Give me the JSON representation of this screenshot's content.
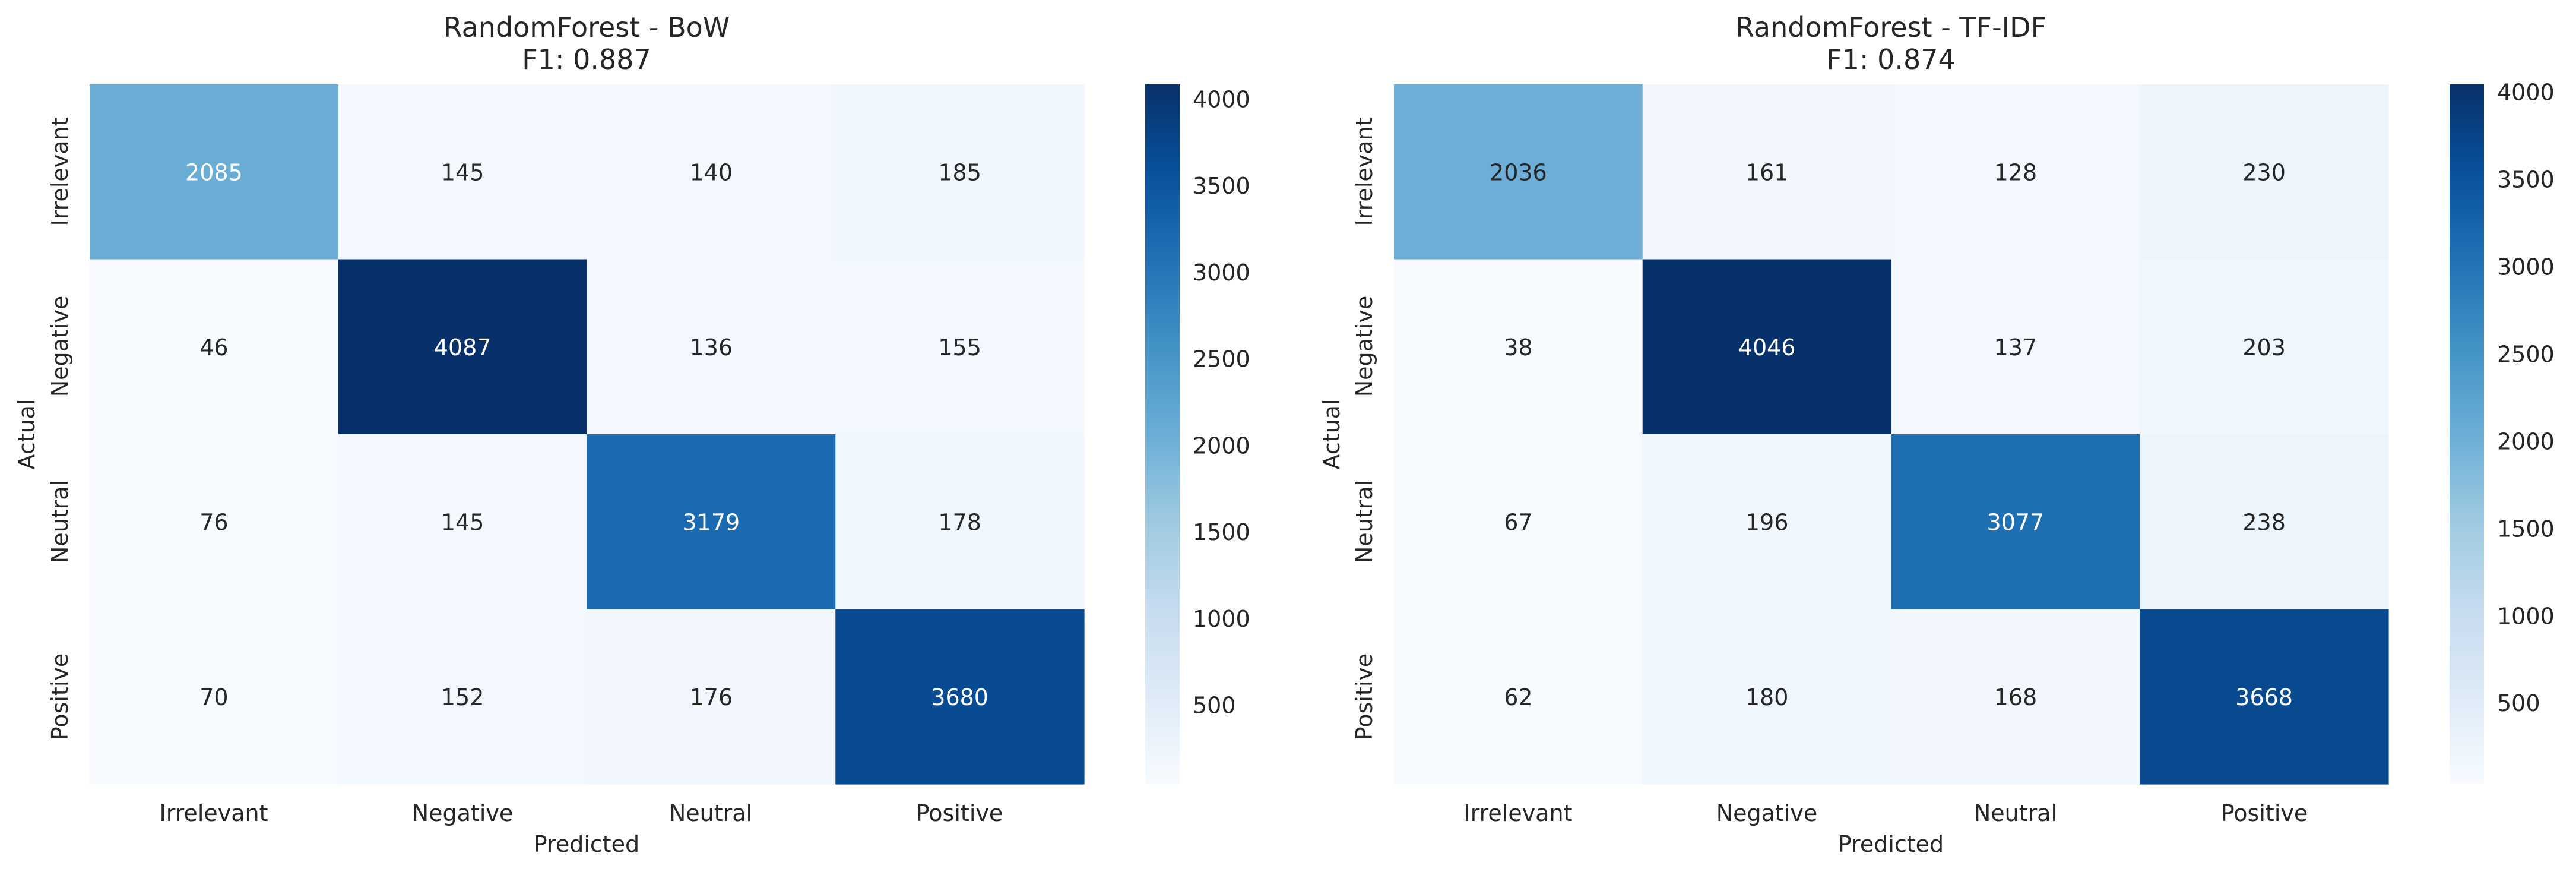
{
  "chart_data": [
    {
      "type": "heatmap",
      "title": "RandomForest - BoW",
      "subtitle": "F1: 0.887",
      "xlabel": "Predicted",
      "ylabel": "Actual",
      "x_categories": [
        "Irrelevant",
        "Negative",
        "Neutral",
        "Positive"
      ],
      "y_categories": [
        "Irrelevant",
        "Negative",
        "Neutral",
        "Positive"
      ],
      "values": [
        [
          2085,
          145,
          140,
          185
        ],
        [
          46,
          4087,
          136,
          155
        ],
        [
          76,
          145,
          3179,
          178
        ],
        [
          70,
          152,
          176,
          3680
        ]
      ],
      "colorbar": {
        "cmap": "Blues",
        "range": [
          46,
          4087
        ],
        "ticks": [
          500,
          1000,
          1500,
          2000,
          2500,
          3000,
          3500,
          4000
        ]
      }
    },
    {
      "type": "heatmap",
      "title": "RandomForest - TF-IDF",
      "subtitle": "F1: 0.874",
      "xlabel": "Predicted",
      "ylabel": "Actual",
      "x_categories": [
        "Irrelevant",
        "Negative",
        "Neutral",
        "Positive"
      ],
      "y_categories": [
        "Irrelevant",
        "Negative",
        "Neutral",
        "Positive"
      ],
      "values": [
        [
          2036,
          161,
          128,
          230
        ],
        [
          38,
          4046,
          137,
          203
        ],
        [
          67,
          196,
          3077,
          238
        ],
        [
          62,
          180,
          168,
          3668
        ]
      ],
      "colorbar": {
        "cmap": "Blues",
        "range": [
          38,
          4046
        ],
        "ticks": [
          500,
          1000,
          1500,
          2000,
          2500,
          3000,
          3500,
          4000
        ]
      }
    }
  ]
}
